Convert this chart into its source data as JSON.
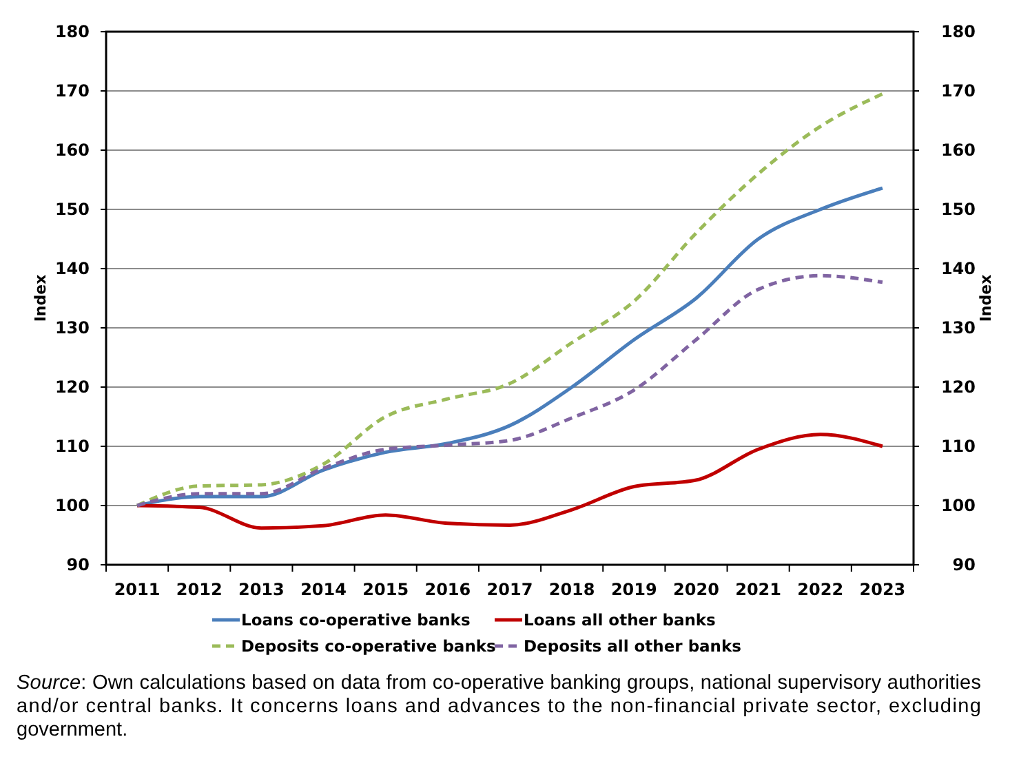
{
  "chart_data": {
    "type": "line",
    "categories": [
      "2011",
      "2012",
      "2013",
      "2014",
      "2015",
      "2016",
      "2017",
      "2018",
      "2019",
      "2020",
      "2021",
      "2022",
      "2023"
    ],
    "series": [
      {
        "name": "Loans co-operative banks",
        "color": "#4a7ebb",
        "line_style": "solid",
        "values": [
          100,
          101.5,
          101.5,
          106,
          109,
          110.5,
          113.5,
          120,
          128,
          135,
          145,
          150,
          153.6
        ]
      },
      {
        "name": "Loans all other banks",
        "color": "#c00000",
        "line_style": "solid",
        "values": [
          100,
          99.7,
          96.2,
          96.6,
          98.4,
          97,
          96.7,
          99.3,
          103.2,
          104.3,
          109.5,
          112,
          110
        ]
      },
      {
        "name": "Deposits co-operative banks",
        "color": "#9bbb59",
        "line_style": "dashed",
        "values": [
          100,
          103.3,
          103.5,
          107,
          115,
          118,
          120.6,
          127.5,
          134.5,
          146,
          156,
          164,
          169.5
        ]
      },
      {
        "name": "Deposits all other banks",
        "color": "#8064a2",
        "line_style": "dashed",
        "values": [
          100,
          102,
          102,
          106.3,
          109.5,
          110.2,
          111,
          114.8,
          119.5,
          128,
          136.5,
          138.8,
          137.7
        ]
      }
    ],
    "ylim": [
      90,
      180
    ],
    "yticks": [
      90,
      100,
      110,
      120,
      130,
      140,
      150,
      160,
      170,
      180
    ],
    "y2lim": [
      90,
      180
    ],
    "y2ticks": [
      90,
      100,
      110,
      120,
      130,
      140,
      150,
      160,
      170,
      180
    ],
    "ylabel": "Index",
    "y2label": "Index",
    "grid": "y",
    "legend": "bottom",
    "annotations": [
      "Source: Own calculations based on data from co-operative banking groups, national supervisory authorities and/or central banks. It concerns loans and advances to the non-financial private sector, excluding government."
    ]
  }
}
